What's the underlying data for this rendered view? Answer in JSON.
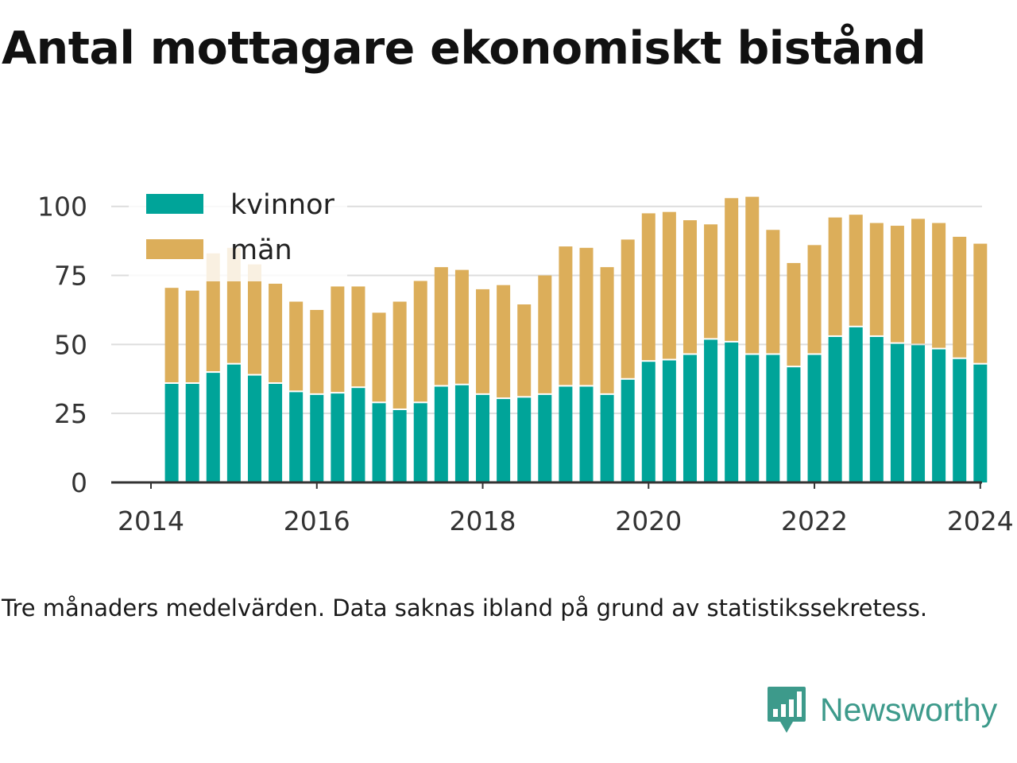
{
  "title": "Antal mottagare ekonomiskt bistånd",
  "note": "Tre månaders medelvärden. Data saknas ibland på grund av statistikssekretess.",
  "brand": {
    "name": "Newsworthy",
    "icon": "newsworthy-logo-icon"
  },
  "colors": {
    "kvinnor": "#00a499",
    "man": "#dcae5a",
    "grid": "#dddddd",
    "axis": "#333333",
    "brand": "#3d9a8b"
  },
  "chart_data": {
    "type": "bar",
    "stacked": true,
    "x_unit": "year",
    "x": [
      2014.25,
      2014.5,
      2014.75,
      2015.0,
      2015.25,
      2015.5,
      2015.75,
      2016.0,
      2016.25,
      2016.5,
      2016.75,
      2017.0,
      2017.25,
      2017.5,
      2017.75,
      2018.0,
      2018.25,
      2018.5,
      2018.75,
      2019.0,
      2019.25,
      2019.5,
      2019.75,
      2020.0,
      2020.25,
      2020.5,
      2020.75,
      2021.0,
      2021.25,
      2021.5,
      2021.75,
      2022.0,
      2022.25,
      2022.5,
      2022.75,
      2023.0,
      2023.25,
      2023.5,
      2023.75,
      2024.0
    ],
    "series": [
      {
        "name": "kvinnor",
        "values": [
          36,
          36,
          40,
          43,
          39,
          36,
          33,
          32,
          32.5,
          34.5,
          29,
          26.5,
          29,
          35,
          35.5,
          32,
          30.5,
          31,
          32,
          35,
          35,
          32,
          37.5,
          44,
          44.5,
          46.5,
          52,
          51,
          46.5,
          46.5,
          42,
          46.5,
          53,
          56.5,
          53,
          50.5,
          50,
          48.5,
          45,
          43
        ]
      },
      {
        "name": "män",
        "values": [
          34.5,
          33.5,
          43,
          42,
          40,
          36,
          32.5,
          30.5,
          38.5,
          36.5,
          32.5,
          39,
          44,
          43,
          41.5,
          38,
          41,
          33.5,
          43,
          50.5,
          50,
          46,
          50.5,
          53.5,
          53.5,
          48.5,
          41.5,
          52,
          57,
          45,
          37.5,
          39.5,
          43,
          40.5,
          41,
          42.5,
          45.5,
          45.5,
          44,
          43.5
        ]
      }
    ],
    "legend": [
      "kvinnor",
      "män"
    ],
    "legend_position": "top-left",
    "x_ticks": [
      "2014",
      "2016",
      "2018",
      "2020",
      "2022",
      "2024"
    ],
    "y_ticks": [
      "0",
      "25",
      "50",
      "75",
      "100"
    ],
    "xlim": [
      2014,
      2024.5
    ],
    "ylim": [
      0,
      110
    ],
    "grid": true,
    "xlabel": "",
    "ylabel": ""
  }
}
